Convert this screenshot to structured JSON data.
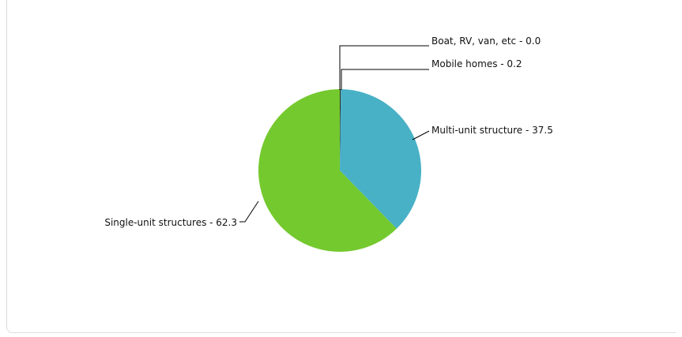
{
  "chart_data": {
    "type": "pie",
    "slices": [
      {
        "label": "Boat, RV, van, etc",
        "value": 0.0,
        "color": "#8a8a8a"
      },
      {
        "label": "Mobile homes",
        "value": 0.2,
        "color": "#2b2b2b"
      },
      {
        "label": "Multi-unit structure",
        "value": 37.5,
        "color": "#48b1c6"
      },
      {
        "label": "Single-unit structures",
        "value": 62.3,
        "color": "#74c92e"
      }
    ],
    "label_texts": [
      "Boat, RV, van, etc - 0.0",
      "Mobile homes - 0.2",
      "Multi-unit structure - 37.5",
      "Single-unit structures - 62.3"
    ]
  }
}
